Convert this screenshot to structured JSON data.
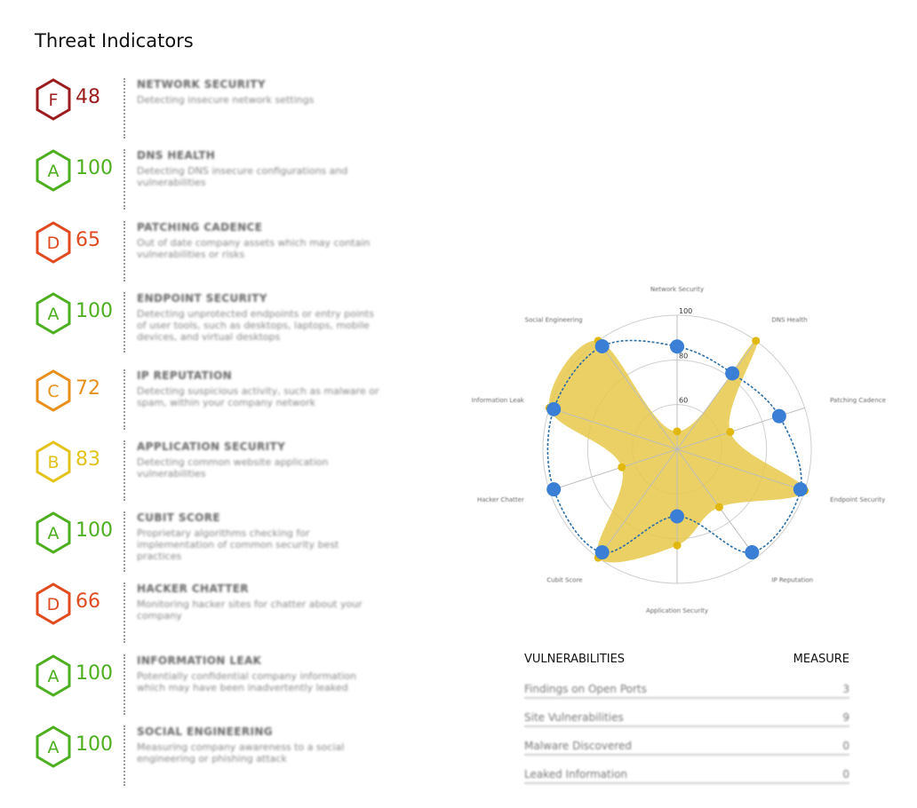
{
  "page": {
    "title": "Threat Indicators"
  },
  "indicators": [
    {
      "grade": "F",
      "score": "48",
      "color": "#9b1c1c",
      "title": "NETWORK SECURITY",
      "description": "Detecting insecure network settings"
    },
    {
      "grade": "A",
      "score": "100",
      "color": "#4caf1f",
      "title": "DNS HEALTH",
      "description": "Detecting DNS insecure configurations and vulnerabilities"
    },
    {
      "grade": "D",
      "score": "65",
      "color": "#e04a1f",
      "title": "PATCHING CADENCE",
      "description": "Out of date company assets which may contain vulnerabilities or risks"
    },
    {
      "grade": "A",
      "score": "100",
      "color": "#4caf1f",
      "title": "ENDPOINT SECURITY",
      "description": "Detecting unprotected endpoints or entry points of user tools, such as desktops, laptops, mobile devices, and virtual desktops"
    },
    {
      "grade": "C",
      "score": "72",
      "color": "#e8901a",
      "title": "IP REPUTATION",
      "description": "Detecting suspicious activity, such as malware or spam, within your company network"
    },
    {
      "grade": "B",
      "score": "83",
      "color": "#e3c21a",
      "title": "APPLICATION SECURITY",
      "description": "Detecting common website application vulnerabilities"
    },
    {
      "grade": "A",
      "score": "100",
      "color": "#4caf1f",
      "title": "CUBIT SCORE",
      "description": "Proprietary algorithms checking for implementation of common security best practices"
    },
    {
      "grade": "D",
      "score": "66",
      "color": "#e04a1f",
      "title": "HACKER CHATTER",
      "description": "Monitoring hacker sites for chatter about your company"
    },
    {
      "grade": "A",
      "score": "100",
      "color": "#4caf1f",
      "title": "INFORMATION LEAK",
      "description": "Potentially confidential company information which may have been inadvertently leaked"
    },
    {
      "grade": "A",
      "score": "100",
      "color": "#4caf1f",
      "title": "SOCIAL ENGINEERING",
      "description": "Measuring company awareness to a social engineering or phishing attack"
    }
  ],
  "chart_data": {
    "type": "radar",
    "axes": [
      "Network Security",
      "DNS Health",
      "Patching Cadence",
      "Endpoint Security",
      "IP Reputation",
      "Application Security",
      "Cubit Score",
      "Hacker Chatter",
      "Information Leak",
      "Social Engineering"
    ],
    "ticks": [
      "100",
      "80",
      "60"
    ],
    "range": [
      40,
      100
    ],
    "series": [
      {
        "values": [
          48,
          100,
          65,
          100,
          72,
          83,
          100,
          66,
          100,
          100
        ],
        "color": "#e8c94a",
        "style": "filled area with small markers"
      },
      {
        "values": [
          86,
          82,
          88,
          98,
          97,
          70,
          97,
          98,
          98,
          97
        ],
        "color": "#3a7fd5",
        "style": "dashed line with large markers"
      }
    ]
  },
  "vulnerabilities": {
    "header_label": "VULNERABILITIES",
    "header_measure": "MEASURE",
    "rows": [
      {
        "label": "Findings on Open Ports",
        "value": "3"
      },
      {
        "label": "Site Vulnerabilities",
        "value": "9"
      },
      {
        "label": "Malware Discovered",
        "value": "0"
      },
      {
        "label": "Leaked Information",
        "value": "0"
      }
    ]
  }
}
